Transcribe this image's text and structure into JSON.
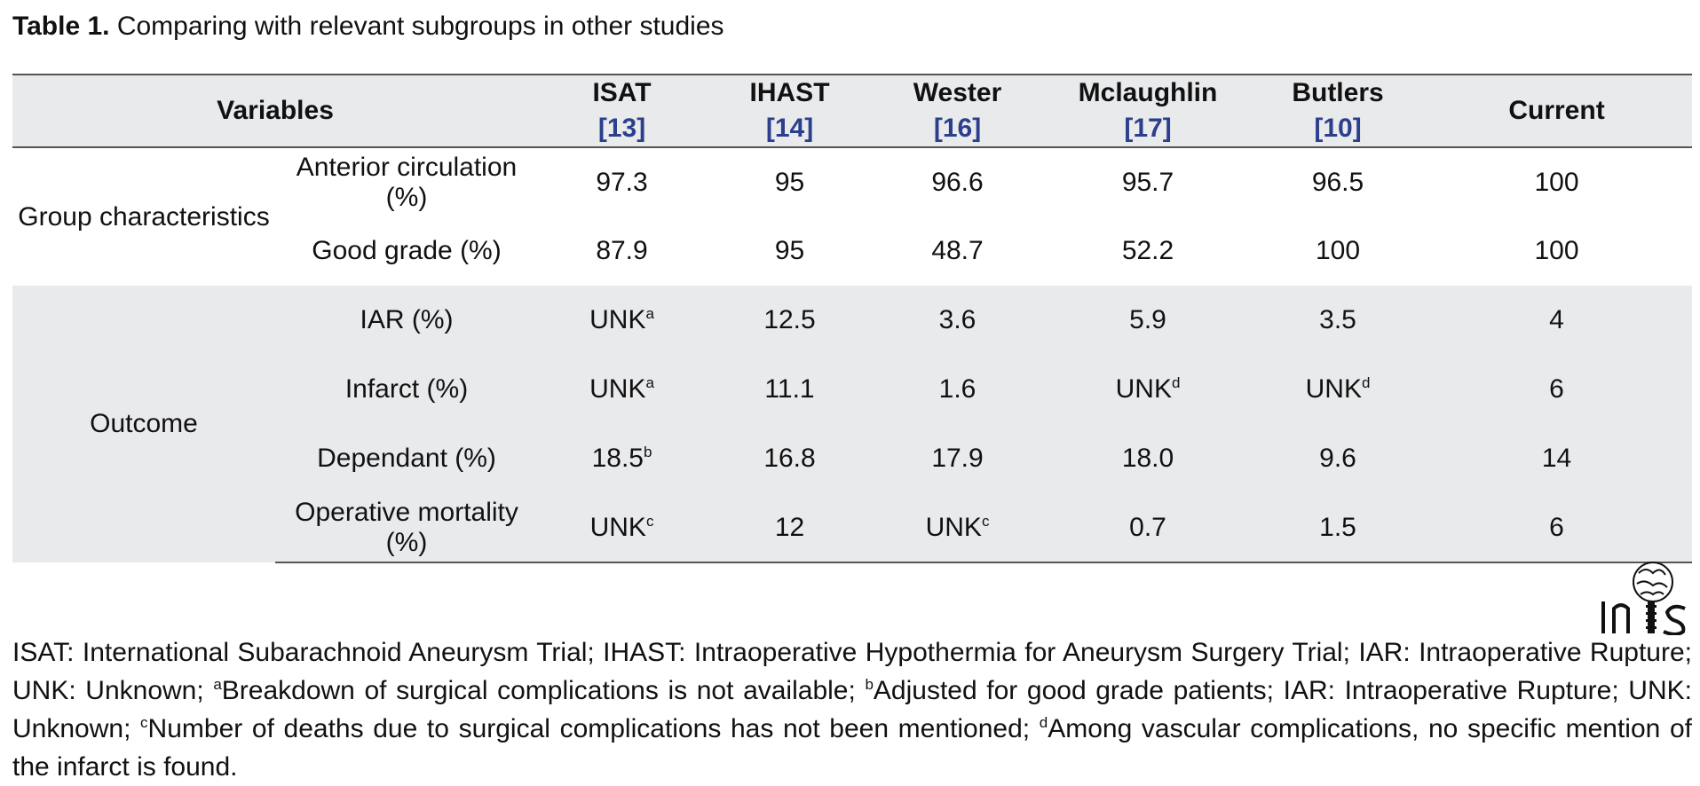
{
  "caption": {
    "label": "Table 1.",
    "text": " Comparing with relevant subgroups in other studies"
  },
  "table": {
    "header": {
      "variables": "Variables",
      "studies": [
        {
          "name": "ISAT",
          "ref": "[13]"
        },
        {
          "name": "IHAST",
          "ref": "[14]"
        },
        {
          "name": "Wester",
          "ref": "[16]"
        },
        {
          "name": "Mclaughlin",
          "ref": "[17]"
        },
        {
          "name": "Butlers",
          "ref": "[10]"
        }
      ],
      "current": "Current"
    },
    "groups": [
      {
        "name": "Group characteristics",
        "rows": [
          {
            "label": "Anterior circulation (%)",
            "cells": [
              [
                "97.3",
                ""
              ],
              [
                "95",
                ""
              ],
              [
                "96.6",
                ""
              ],
              [
                "95.7",
                ""
              ],
              [
                "96.5",
                ""
              ],
              [
                "100",
                ""
              ]
            ]
          },
          {
            "label": "Good grade (%)",
            "cells": [
              [
                "87.9",
                ""
              ],
              [
                "95",
                ""
              ],
              [
                "48.7",
                ""
              ],
              [
                "52.2",
                ""
              ],
              [
                "100",
                ""
              ],
              [
                "100",
                ""
              ]
            ]
          }
        ]
      },
      {
        "name": "Outcome",
        "rows": [
          {
            "label": "IAR (%)",
            "cells": [
              [
                "UNK",
                "a"
              ],
              [
                "12.5",
                ""
              ],
              [
                "3.6",
                ""
              ],
              [
                "5.9",
                ""
              ],
              [
                "3.5",
                ""
              ],
              [
                "4",
                ""
              ]
            ]
          },
          {
            "label": "Infarct (%)",
            "cells": [
              [
                "UNK",
                "a"
              ],
              [
                "11.1",
                ""
              ],
              [
                "1.6",
                ""
              ],
              [
                "UNK",
                "d"
              ],
              [
                "UNK",
                "d"
              ],
              [
                "6",
                ""
              ]
            ]
          },
          {
            "label": "Dependant (%)",
            "cells": [
              [
                "18.5",
                "b"
              ],
              [
                "16.8",
                ""
              ],
              [
                "17.9",
                ""
              ],
              [
                "18.0",
                ""
              ],
              [
                "9.6",
                ""
              ],
              [
                "14",
                ""
              ]
            ]
          },
          {
            "label": "Operative mortality (%)",
            "cells": [
              [
                "UNK",
                "c"
              ],
              [
                "12",
                ""
              ],
              [
                "UNK",
                "c"
              ],
              [
                "0.7",
                ""
              ],
              [
                "1.5",
                ""
              ],
              [
                "6",
                ""
              ]
            ]
          }
        ]
      }
    ]
  },
  "logo": {
    "text": "INS"
  },
  "footnote": {
    "p1": "ISAT: International Subarachnoid Aneurysm Trial; IHAST: Intraoperative Hypothermia for Aneurysm Surgery Trial; IAR: Intraoperative Rupture; UNK: Unknown; ",
    "s1": "a",
    "p2": "Breakdown of surgical complications is not available; ",
    "s2": "b",
    "p3": "Adjusted for good grade patients; IAR: Intraoperative Rupture; UNK: Unknown; ",
    "s3": "c",
    "p4": "Number of deaths due to surgical complications has not been mentioned; ",
    "s4": "d",
    "p5": "Among vascular complications, no specific mention of the infarct is found."
  }
}
